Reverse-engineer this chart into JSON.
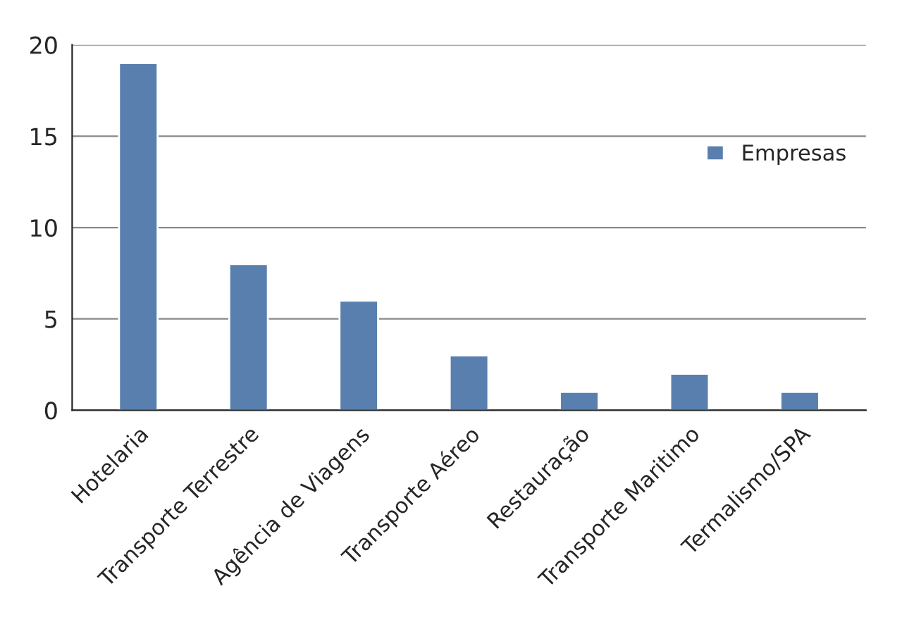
{
  "chart_data": {
    "type": "bar",
    "categories": [
      "Hotelaria",
      "Transporte Terrestre",
      "Agência de Viagens",
      "Transporte Aéreo",
      "Restauração",
      "Transporte Maritimo",
      "Termalismo/SPA"
    ],
    "series": [
      {
        "name": "Empresas",
        "color": "#4a7ebb",
        "values": [
          19,
          8,
          6,
          3,
          1,
          2,
          1
        ]
      }
    ],
    "ylim": [
      0,
      20
    ],
    "yticks": [
      0,
      5,
      10,
      15,
      20
    ],
    "grid": "y",
    "legend": "right"
  }
}
